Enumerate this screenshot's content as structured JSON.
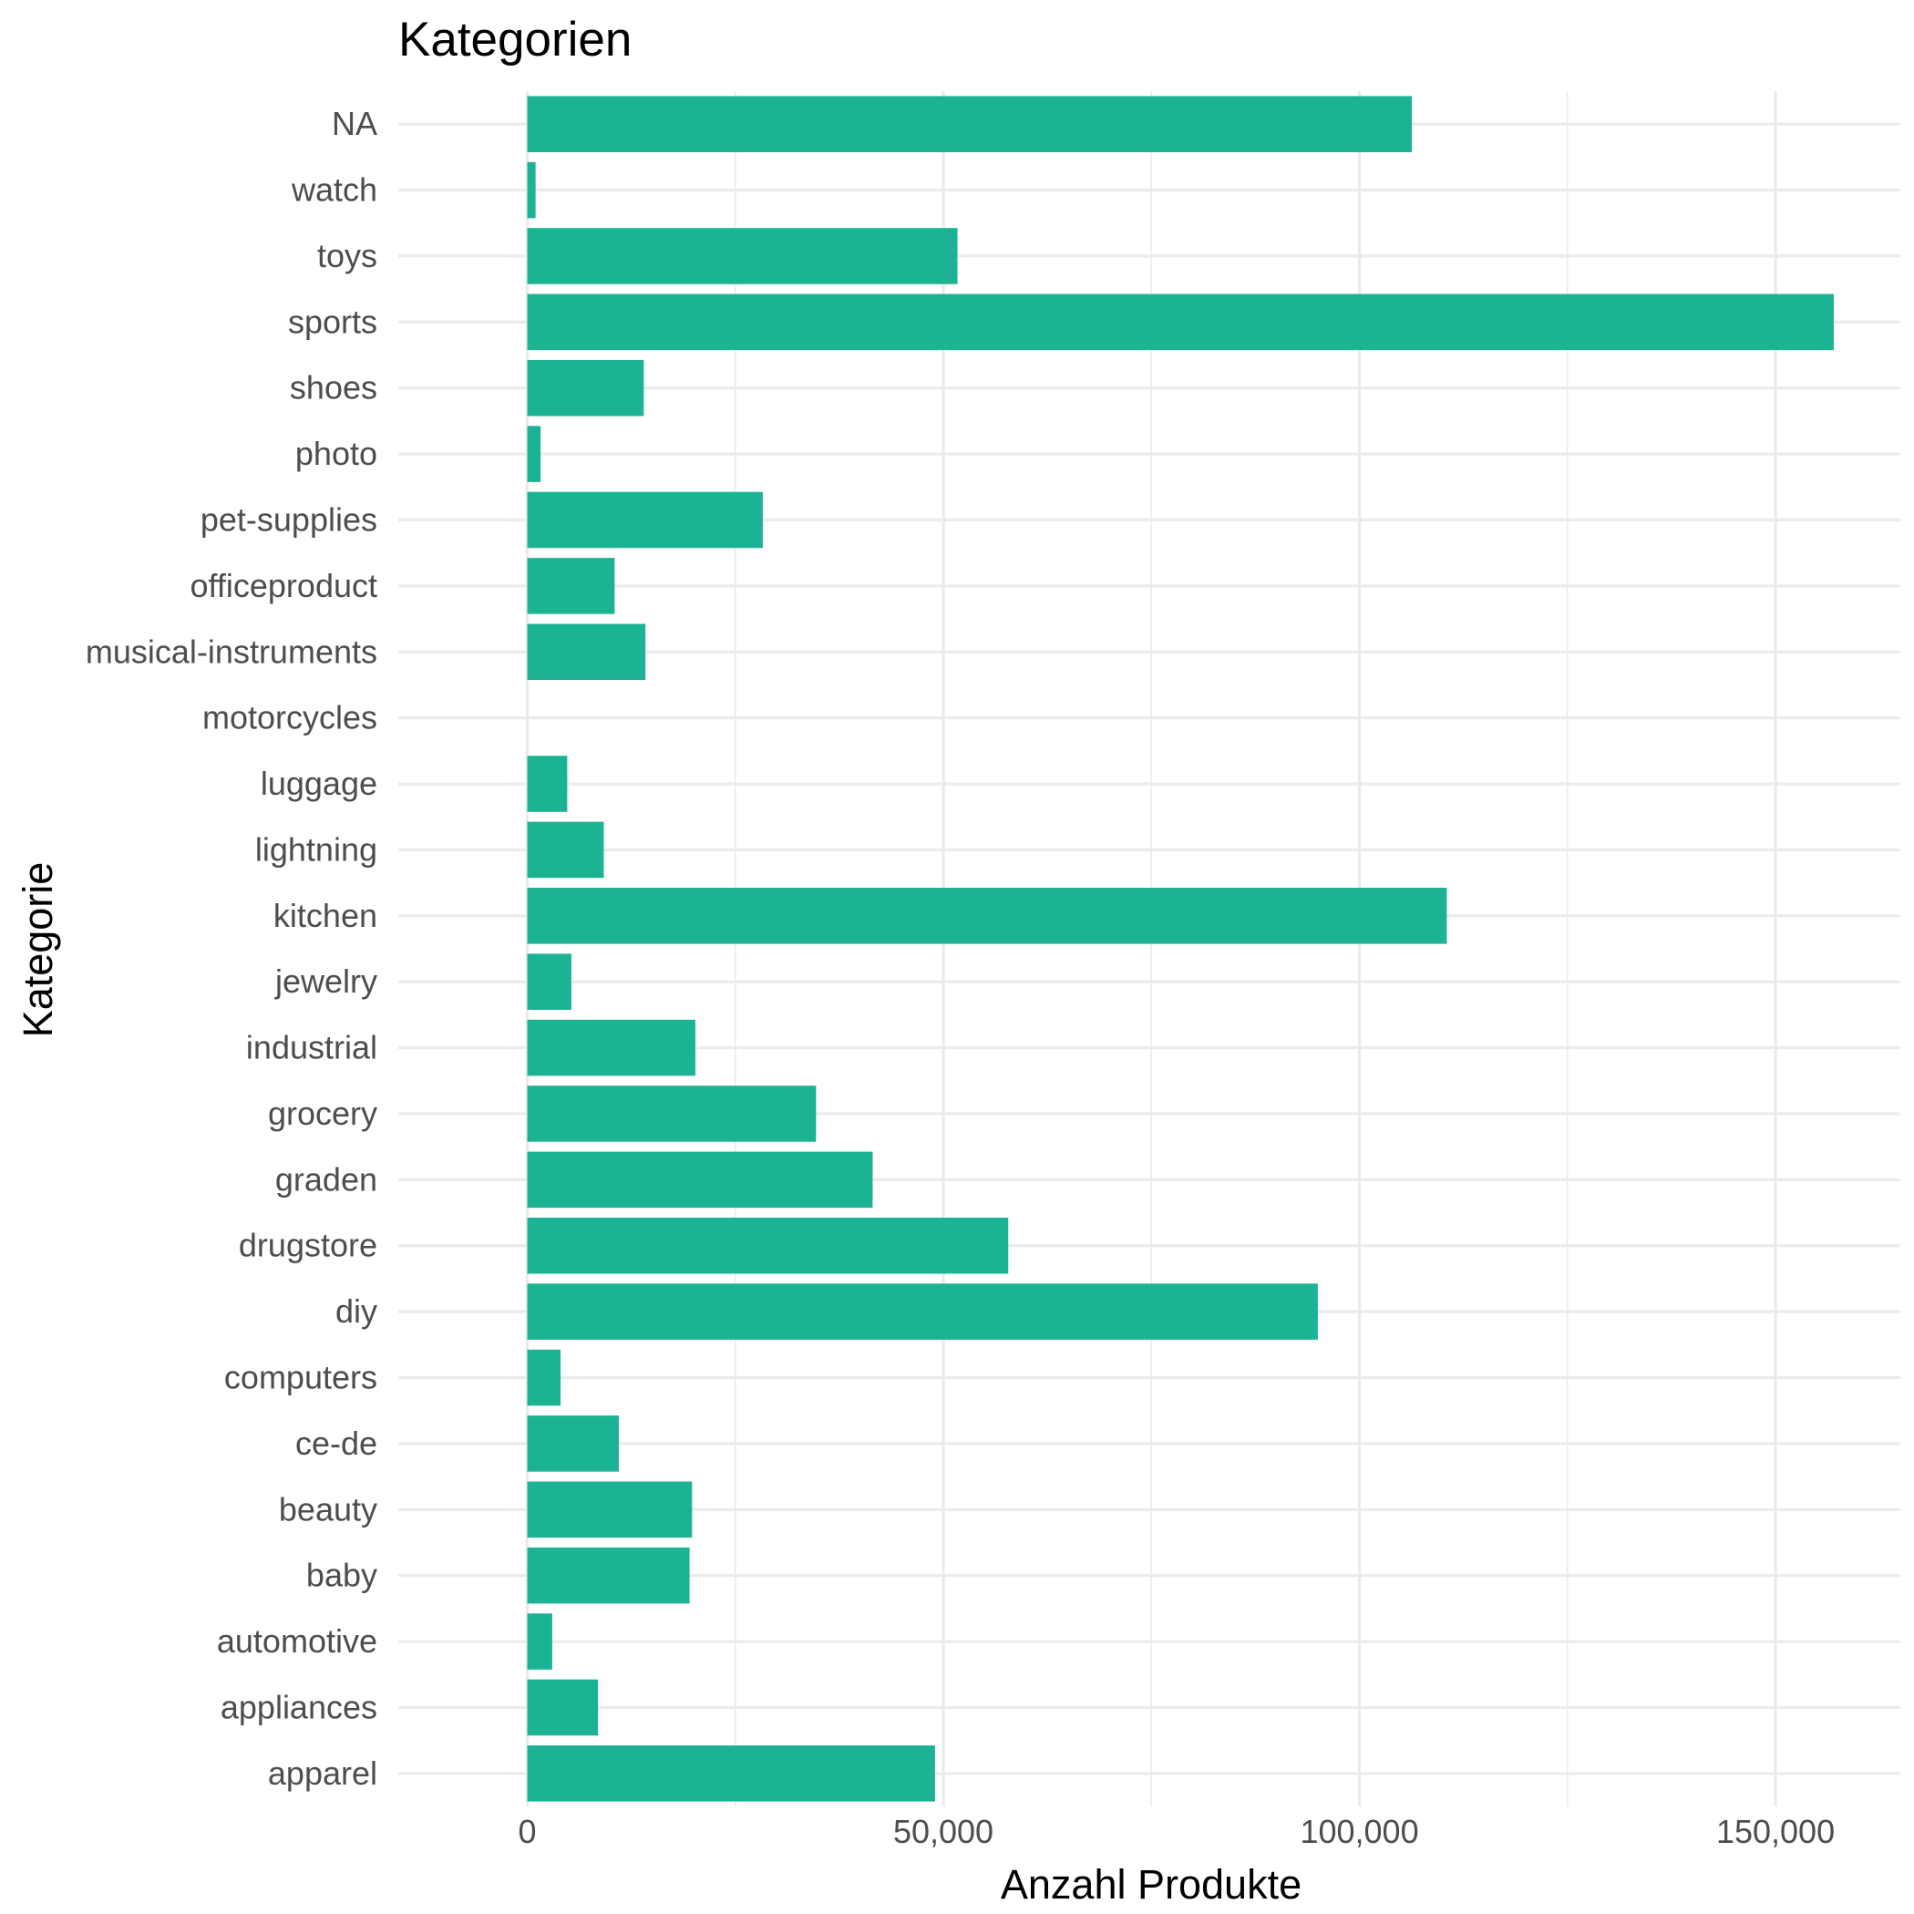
{
  "chart_data": {
    "type": "bar",
    "orientation": "horizontal",
    "title": "Kategorien",
    "xlabel": "Anzahl Produkte",
    "ylabel": "Kategorie",
    "xlim": [
      -15500,
      165000
    ],
    "x_ticks": [
      0,
      50000,
      100000,
      150000
    ],
    "x_tick_labels": [
      "0",
      "50,000",
      "100,000",
      "150,000"
    ],
    "grid": true,
    "bar_color": "#1CB394",
    "categories": [
      "apparel",
      "appliances",
      "automotive",
      "baby",
      "beauty",
      "ce-de",
      "computers",
      "diy",
      "drugstore",
      "graden",
      "grocery",
      "industrial",
      "jewelry",
      "kitchen",
      "lightning",
      "luggage",
      "motorcycles",
      "musical-instruments",
      "officeproduct",
      "pet-supplies",
      "photo",
      "shoes",
      "sports",
      "toys",
      "watch",
      "NA"
    ],
    "values": [
      49000,
      8500,
      3000,
      19500,
      19800,
      11000,
      4000,
      95000,
      57800,
      41500,
      34700,
      20200,
      5300,
      110500,
      9200,
      4800,
      0,
      14200,
      10500,
      28300,
      1600,
      14000,
      157000,
      51700,
      1000,
      106300
    ]
  }
}
